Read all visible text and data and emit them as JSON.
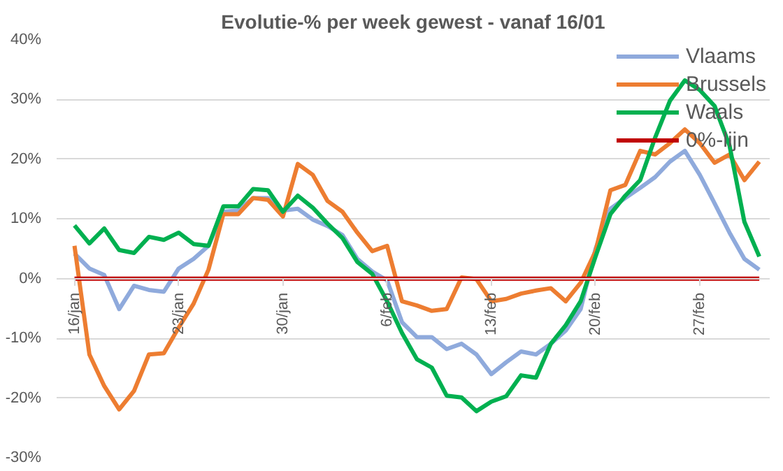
{
  "chart_data": {
    "type": "line",
    "title": "Evolutie-% per week gewest - vanaf 16/01",
    "categories": [
      "16/jan",
      null,
      null,
      null,
      null,
      null,
      null,
      "23/jan",
      null,
      null,
      null,
      null,
      null,
      null,
      "30/jan",
      null,
      null,
      null,
      null,
      null,
      null,
      "6/feb",
      null,
      null,
      null,
      null,
      null,
      null,
      "13/feb",
      null,
      null,
      null,
      null,
      null,
      null,
      "20/feb",
      null,
      null,
      null,
      null,
      null,
      null,
      "27/feb",
      null,
      null,
      null,
      null
    ],
    "series": [
      {
        "name": "Vlaams",
        "color": "#8faadc",
        "values": [
          4.2,
          1.7,
          0.6,
          -5.1,
          -1.2,
          -1.9,
          -2.2,
          1.7,
          3.3,
          5.5,
          11.2,
          11.4,
          13.5,
          13.5,
          11.4,
          11.7,
          9.9,
          8.8,
          7.3,
          3.3,
          1.2,
          -0.3,
          -7.3,
          -9.8,
          -9.8,
          -11.8,
          -10.9,
          -12.7,
          -16,
          -14,
          -12.2,
          -12.7,
          -10.9,
          -8.7,
          -5.1,
          5,
          11.7,
          13.5,
          15.2,
          17,
          19.6,
          21.4,
          17.4,
          12.6,
          7.7,
          3.3,
          1.5
        ]
      },
      {
        "name": "Brussels",
        "color": "#ed7d31",
        "values": [
          5.5,
          -12.7,
          -18,
          -21.9,
          -18.8,
          -12.7,
          -12.5,
          -8.2,
          -4.2,
          1.5,
          10.8,
          10.8,
          13.5,
          13.2,
          10.4,
          19.2,
          17.4,
          13,
          11.2,
          7.7,
          4.6,
          5.5,
          -3.8,
          -4.5,
          -5.4,
          -5.1,
          0.2,
          -0.1,
          -3.8,
          -3.4,
          -2.5,
          -2,
          -1.6,
          -3.8,
          -0.7,
          4.6,
          14.8,
          15.7,
          21.4,
          20.8,
          22.7,
          25,
          22.7,
          19.4,
          20.8,
          16.5,
          19.6
        ]
      },
      {
        "name": "Waals",
        "color": "#00b050",
        "values": [
          8.9,
          5.9,
          8.4,
          4.8,
          4.3,
          7,
          6.5,
          7.7,
          5.8,
          5.5,
          12.1,
          12.1,
          15,
          14.8,
          11.2,
          13.9,
          11.9,
          9.2,
          6.8,
          2.8,
          0.8,
          -3.8,
          -9.1,
          -13.5,
          -14.9,
          -19.6,
          -19.9,
          -22.2,
          -20.6,
          -19.7,
          -16.2,
          -16.6,
          -10.9,
          -7.8,
          -3.8,
          3.7,
          10.8,
          13.9,
          16.5,
          23.6,
          29.8,
          33.2,
          31.6,
          28.9,
          22.3,
          9.5,
          3.7
        ]
      },
      {
        "name": "0%-lijn",
        "color": "#c00000",
        "values": [
          0,
          0,
          0,
          0,
          0,
          0,
          0,
          0,
          0,
          0,
          0,
          0,
          0,
          0,
          0,
          0,
          0,
          0,
          0,
          0,
          0,
          0,
          0,
          0,
          0,
          0,
          0,
          0,
          0,
          0,
          0,
          0,
          0,
          0,
          0,
          0,
          0,
          0,
          0,
          0,
          0,
          0,
          0,
          0,
          0,
          0,
          0
        ]
      }
    ],
    "ylim": [
      -30,
      40
    ],
    "yticks": [
      {
        "value": -30,
        "label": "-30%"
      },
      {
        "value": -20,
        "label": "-20%"
      },
      {
        "value": -10,
        "label": "-10%"
      },
      {
        "value": 0,
        "label": "0%"
      },
      {
        "value": 10,
        "label": "10%"
      },
      {
        "value": 20,
        "label": "20%"
      },
      {
        "value": 30,
        "label": "30%"
      },
      {
        "value": 40,
        "label": "40%"
      }
    ],
    "grid": "y",
    "legend": "top right",
    "marker": "none",
    "line_style": "solid"
  }
}
